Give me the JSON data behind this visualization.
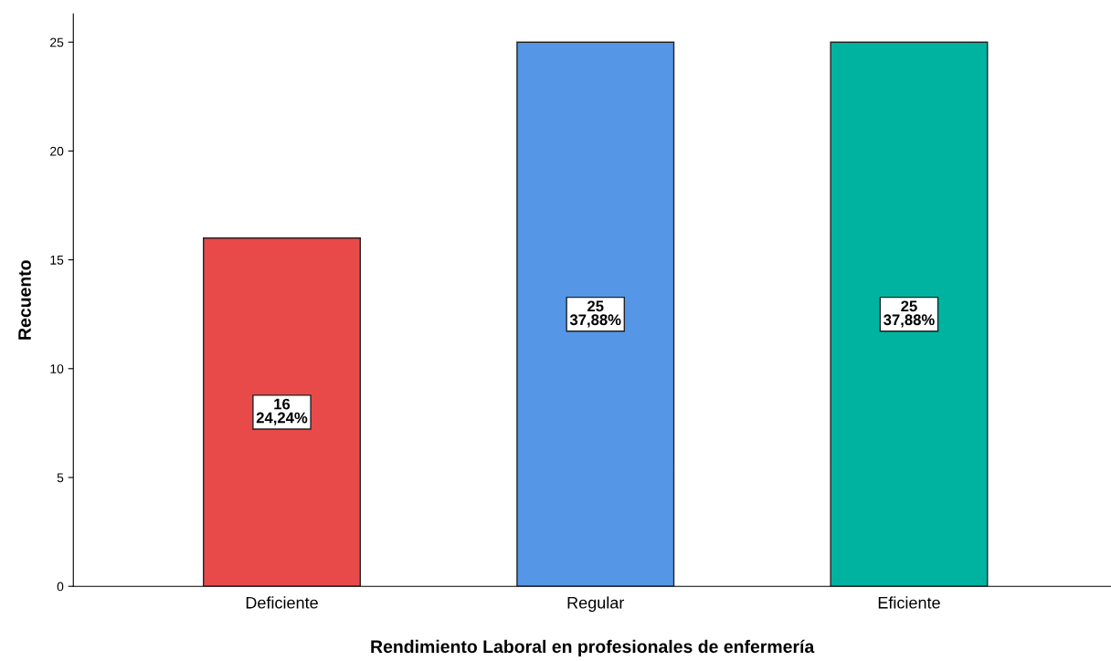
{
  "chart_data": {
    "type": "bar",
    "xlabel": "Rendimiento Laboral en profesionales de enfermería",
    "ylabel": "Recuento",
    "categories": [
      "Deficiente",
      "Regular",
      "Eficiente"
    ],
    "values": [
      16,
      25,
      25
    ],
    "colors": [
      "#e84a4a",
      "#5596e6",
      "#00b3a0"
    ],
    "value_labels": [
      "16\n24,24%",
      "25\n37,88%",
      "25\n37,88%"
    ],
    "ylim": [
      0,
      26.3
    ],
    "yticks": [
      0,
      5,
      10,
      15,
      20,
      25
    ],
    "grid": false,
    "legend": false
  }
}
